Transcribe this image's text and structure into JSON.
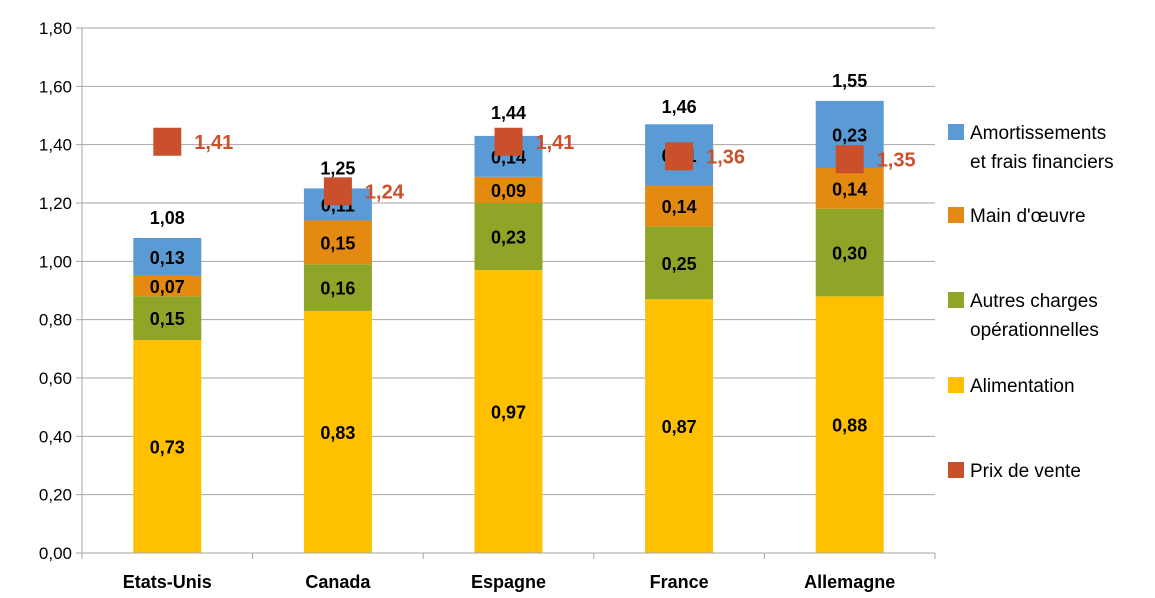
{
  "chart_data": {
    "type": "bar",
    "stacked": true,
    "categories": [
      "Etats-Unis",
      "Canada",
      "Espagne",
      "France",
      "Allemagne"
    ],
    "series": [
      {
        "name": "Alimentation",
        "color": "#FFC000",
        "values": [
          "0,73",
          "0,83",
          "0,97",
          "0,87",
          "0,88"
        ]
      },
      {
        "name": "Autres charges opérationnelles",
        "color": "#8FA528",
        "values": [
          "0,15",
          "0,16",
          "0,23",
          "0,25",
          "0,30"
        ]
      },
      {
        "name": "Main d'œuvre",
        "color": "#E48A10",
        "values": [
          "0,07",
          "0,15",
          "0,09",
          "0,14",
          "0,14"
        ]
      },
      {
        "name": "Amortissements et frais financiers",
        "color": "#5B9BD5",
        "values": [
          "0,13",
          "0,11",
          "0,14",
          "0,21",
          "0,23"
        ]
      }
    ],
    "totals": [
      "1,08",
      "1,25",
      "1,44",
      "1,46",
      "1,55"
    ],
    "price": {
      "name": "Prix de vente",
      "color": "#C9502A",
      "values": [
        "1,41",
        "1,24",
        "1,41",
        "1,36",
        "1,35"
      ]
    },
    "yticks": [
      "0,00",
      "0,20",
      "0,40",
      "0,60",
      "0,80",
      "1,00",
      "1,20",
      "1,40",
      "1,60",
      "1,80"
    ],
    "ylim": [
      0,
      1.8
    ],
    "grid": true,
    "legend": "right",
    "legend_order": [
      {
        "lines": [
          "Amortissements",
          "et frais financiers"
        ],
        "color": "#5B9BD5"
      },
      {
        "lines": [
          "Main d'œuvre"
        ],
        "color": "#E48A10"
      },
      {
        "lines": [
          "Autres charges",
          "opérationnelles"
        ],
        "color": "#8FA528"
      },
      {
        "lines": [
          "Alimentation"
        ],
        "color": "#FFC000"
      },
      {
        "lines": [
          "Prix de vente"
        ],
        "color": "#C9502A"
      }
    ]
  }
}
